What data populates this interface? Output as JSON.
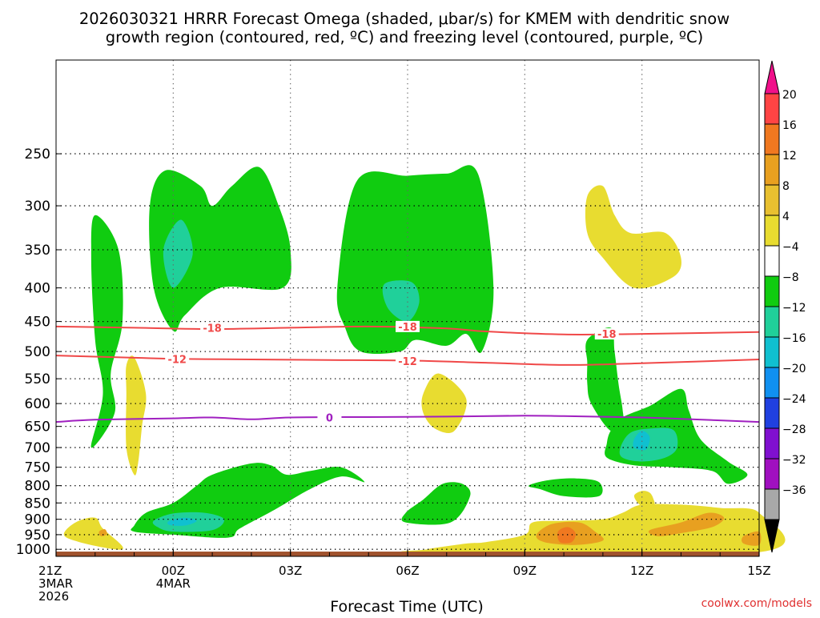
{
  "chart_data": {
    "type": "contour",
    "title_line1": "2026030321 HRRR Forecast Omega (shaded, μbar/s) for KMEM with dendritic snow",
    "title_line2": "growth region (contoured, red, ºC) and freezing level (contoured, purple, ºC)",
    "xlabel": "Forecast Time (UTC)",
    "credit": "coolwx.com/models",
    "xlim": [
      -3,
      15
    ],
    "y_axis_log_pressure_range": [
      1025,
      180
    ],
    "x_ticks": [
      {
        "x": -3,
        "lines": [
          "21Z",
          "3MAR",
          "2026"
        ]
      },
      {
        "x": 0,
        "lines": [
          "00Z",
          "4MAR"
        ]
      },
      {
        "x": 3,
        "lines": [
          "03Z"
        ]
      },
      {
        "x": 6,
        "lines": [
          "06Z"
        ]
      },
      {
        "x": 9,
        "lines": [
          "09Z"
        ]
      },
      {
        "x": 12,
        "lines": [
          "12Z"
        ]
      },
      {
        "x": 15,
        "lines": [
          "15Z"
        ]
      }
    ],
    "y_ticks": [
      250,
      300,
      350,
      400,
      450,
      500,
      550,
      600,
      650,
      700,
      750,
      800,
      850,
      900,
      950,
      1000
    ],
    "colorbar": {
      "labels": [
        "20",
        "16",
        "12",
        "8",
        "4",
        "−4",
        "−8",
        "−12",
        "−16",
        "−20",
        "−24",
        "−28",
        "−32",
        "−36"
      ],
      "colors": [
        "#ff4444",
        "#f07820",
        "#e8a020",
        "#e8c030",
        "#e8dc30",
        "#ffffff",
        "#10cc10",
        "#20d09a",
        "#10c0d0",
        "#1090f0",
        "#2040e0",
        "#8010d0",
        "#a010c0",
        "#a8a8a8"
      ],
      "top_color": "#f0108a",
      "bottom_color": "#000000"
    },
    "contours": [
      {
        "label": "-18",
        "color": "#f04848",
        "points": [
          [
            -3,
            458
          ],
          [
            -1,
            460
          ],
          [
            1,
            462
          ],
          [
            3,
            460
          ],
          [
            5,
            458
          ],
          [
            7,
            461
          ],
          [
            8,
            466
          ],
          [
            10,
            471
          ],
          [
            12,
            470
          ],
          [
            15,
            467
          ]
        ],
        "labels_at": [
          [
            1,
            460
          ],
          [
            6,
            458
          ],
          [
            11.1,
            470
          ]
        ]
      },
      {
        "label": "-12",
        "color": "#f04848",
        "points": [
          [
            -3,
            507
          ],
          [
            -1,
            511
          ],
          [
            0,
            513
          ],
          [
            2,
            514
          ],
          [
            4,
            515
          ],
          [
            6,
            516
          ],
          [
            8,
            520
          ],
          [
            10,
            524
          ],
          [
            12,
            521
          ],
          [
            15,
            514
          ]
        ],
        "labels_at": [
          [
            0.1,
            513
          ],
          [
            6,
            517
          ]
        ]
      },
      {
        "label": "0",
        "color": "#a020c0",
        "points": [
          [
            -3,
            640
          ],
          [
            -2,
            635
          ],
          [
            0,
            632
          ],
          [
            1,
            630
          ],
          [
            2,
            634
          ],
          [
            3,
            630
          ],
          [
            5,
            629
          ],
          [
            7,
            628
          ],
          [
            9,
            626
          ],
          [
            10,
            627
          ],
          [
            12,
            630
          ],
          [
            13,
            633
          ],
          [
            15,
            640
          ]
        ],
        "labels_at": [
          [
            4,
            630
          ]
        ]
      }
    ],
    "omega_regions": [
      {
        "level": -6,
        "color": "#10cc10",
        "points": [
          [
            -2.1,
            700
          ],
          [
            -1.8,
            580
          ],
          [
            -2.0,
            480
          ],
          [
            -2.1,
            360
          ],
          [
            -2,
            310
          ],
          [
            -1.4,
            350
          ],
          [
            -1.3,
            450
          ],
          [
            -1.6,
            540
          ],
          [
            -1.5,
            620
          ]
        ]
      },
      {
        "level": -6,
        "color": "#10cc10",
        "points": [
          [
            0,
            465
          ],
          [
            -0.5,
            400
          ],
          [
            -0.6,
            300
          ],
          [
            -0.2,
            265
          ],
          [
            0.7,
            280
          ],
          [
            1,
            300
          ],
          [
            1.5,
            280
          ],
          [
            2.2,
            262
          ],
          [
            2.7,
            300
          ],
          [
            3,
            350
          ],
          [
            2.8,
            400
          ],
          [
            1.2,
            400
          ],
          [
            0.3,
            440
          ]
        ]
      },
      {
        "level": -6,
        "color": "#10cc10",
        "points": [
          [
            4.2,
            400
          ],
          [
            4.7,
            275
          ],
          [
            6,
            270
          ],
          [
            7,
            268
          ],
          [
            7.8,
            268
          ],
          [
            8.2,
            400
          ],
          [
            7.9,
            500
          ],
          [
            7.5,
            470
          ],
          [
            7,
            490
          ],
          [
            6.2,
            480
          ],
          [
            5.8,
            500
          ],
          [
            4.8,
            500
          ],
          [
            4.4,
            460
          ]
        ]
      },
      {
        "level": -6,
        "color": "#10cc10",
        "points": [
          [
            -1,
            920
          ],
          [
            -0.7,
            880
          ],
          [
            0,
            850
          ],
          [
            0.6,
            800
          ],
          [
            1,
            770
          ],
          [
            2,
            740
          ],
          [
            2.5,
            745
          ],
          [
            2.9,
            770
          ],
          [
            3.5,
            760
          ],
          [
            4.3,
            750
          ],
          [
            4.9,
            790
          ],
          [
            4.3,
            775
          ],
          [
            3.5,
            810
          ],
          [
            2.6,
            870
          ],
          [
            1.7,
            930
          ],
          [
            1.4,
            960
          ],
          [
            0,
            950
          ],
          [
            -1,
            940
          ]
        ]
      },
      {
        "level": -6,
        "color": "#10cc10",
        "points": [
          [
            5.95,
            910
          ],
          [
            5.95,
            880
          ],
          [
            6.4,
            840
          ],
          [
            6.9,
            795
          ],
          [
            7.4,
            795
          ],
          [
            7.6,
            830
          ],
          [
            7.1,
            910
          ]
        ]
      },
      {
        "level": -6,
        "color": "#10cc10",
        "points": [
          [
            9.1,
            800
          ],
          [
            9.6,
            785
          ],
          [
            10.3,
            780
          ],
          [
            10.9,
            790
          ],
          [
            10.9,
            830
          ],
          [
            10,
            830
          ],
          [
            9.4,
            810
          ]
        ]
      },
      {
        "level": -6,
        "color": "#10cc10",
        "points": [
          [
            10.6,
            520
          ],
          [
            10.6,
            480
          ],
          [
            11.2,
            460
          ],
          [
            11.3,
            500
          ],
          [
            11.4,
            560
          ],
          [
            11.5,
            610
          ],
          [
            11.5,
            640
          ],
          [
            11.2,
            660
          ],
          [
            10.7,
            600
          ],
          [
            10.6,
            560
          ]
        ]
      },
      {
        "level": -6,
        "color": "#10cc10",
        "points": [
          [
            11.2,
            660
          ],
          [
            11.5,
            630
          ],
          [
            12.2,
            605
          ],
          [
            13,
            570
          ],
          [
            13.2,
            615
          ],
          [
            13.5,
            680
          ],
          [
            14.2,
            735
          ],
          [
            14.7,
            770
          ],
          [
            14.2,
            795
          ],
          [
            13.8,
            760
          ],
          [
            12.8,
            750
          ],
          [
            11.8,
            745
          ],
          [
            11.1,
            725
          ],
          [
            11.1,
            690
          ]
        ]
      },
      {
        "level": -10,
        "color": "#20d09a",
        "points": [
          [
            -0.25,
            350
          ],
          [
            0.2,
            315
          ],
          [
            0.5,
            355
          ],
          [
            0,
            400
          ]
        ]
      },
      {
        "level": -10,
        "color": "#20d09a",
        "points": [
          [
            5.4,
            395
          ],
          [
            6.1,
            392
          ],
          [
            6.3,
            420
          ],
          [
            6,
            450
          ],
          [
            5.5,
            430
          ]
        ]
      },
      {
        "level": -10,
        "color": "#20d09a",
        "points": [
          [
            -0.5,
            905
          ],
          [
            0,
            882
          ],
          [
            0.8,
            880
          ],
          [
            1.3,
            900
          ],
          [
            1,
            935
          ],
          [
            0,
            940
          ],
          [
            -0.4,
            925
          ]
        ]
      },
      {
        "level": -10,
        "color": "#20d09a",
        "points": [
          [
            11.45,
            700
          ],
          [
            11.7,
            665
          ],
          [
            12.2,
            655
          ],
          [
            12.8,
            658
          ],
          [
            12.9,
            700
          ],
          [
            12.6,
            725
          ],
          [
            12,
            735
          ],
          [
            11.5,
            725
          ]
        ]
      },
      {
        "level": -14,
        "color": "#10c0d0",
        "points": [
          [
            -0.1,
            905
          ],
          [
            0.3,
            895
          ],
          [
            0.6,
            905
          ],
          [
            0.3,
            920
          ],
          [
            -0.1,
            918
          ]
        ]
      },
      {
        "level": -14,
        "color": "#10c0d0",
        "points": [
          [
            11.8,
            680
          ],
          [
            12,
            660
          ],
          [
            12.2,
            675
          ],
          [
            12.1,
            705
          ],
          [
            11.8,
            700
          ]
        ]
      },
      {
        "level": 6,
        "color": "#e8dc30",
        "points": [
          [
            10.6,
            330
          ],
          [
            10.6,
            290
          ],
          [
            11,
            280
          ],
          [
            11.3,
            310
          ],
          [
            11.7,
            330
          ],
          [
            12.6,
            330
          ],
          [
            13,
            360
          ],
          [
            12.8,
            385
          ],
          [
            11.8,
            400
          ],
          [
            11,
            360
          ]
        ]
      },
      {
        "level": 6,
        "color": "#e8dc30",
        "points": [
          [
            -1.2,
            580
          ],
          [
            -1.2,
            525
          ],
          [
            -1,
            510
          ],
          [
            -0.7,
            580
          ],
          [
            -0.8,
            650
          ],
          [
            -0.9,
            740
          ],
          [
            -1,
            770
          ],
          [
            -1.2,
            700
          ]
        ]
      },
      {
        "level": 6,
        "color": "#e8dc30",
        "points": [
          [
            6.4,
            580
          ],
          [
            6.8,
            540
          ],
          [
            7.5,
            590
          ],
          [
            7.2,
            660
          ],
          [
            6.7,
            655
          ],
          [
            6.4,
            620
          ]
        ]
      },
      {
        "level": 6,
        "color": "#e8dc30",
        "points": [
          [
            -2.8,
            950
          ],
          [
            -2.5,
            910
          ],
          [
            -2,
            895
          ],
          [
            -1.8,
            930
          ],
          [
            -1.3,
            990
          ],
          [
            -1.5,
            1000
          ],
          [
            -2.4,
            975
          ]
        ]
      },
      {
        "level": 6,
        "color": "#e8dc30",
        "points": [
          [
            6.5,
            1000
          ],
          [
            7.5,
            980
          ],
          [
            8,
            975
          ],
          [
            9,
            950
          ],
          [
            9.2,
            910
          ],
          [
            10,
            905
          ],
          [
            11,
            900
          ],
          [
            11.5,
            880
          ],
          [
            12,
            855
          ],
          [
            13,
            855
          ],
          [
            14,
            865
          ],
          [
            15,
            880
          ],
          [
            15,
            1010
          ],
          [
            6.5,
            1010
          ]
        ]
      },
      {
        "level": 6,
        "color": "#e8dc30",
        "points": [
          [
            11.8,
            830
          ],
          [
            12,
            815
          ],
          [
            12.2,
            820
          ],
          [
            12.3,
            840
          ],
          [
            12.3,
            855
          ],
          [
            12,
            860
          ]
        ]
      },
      {
        "level": 10,
        "color": "#e8a020",
        "points": [
          [
            9.3,
            950
          ],
          [
            9.7,
            915
          ],
          [
            10.4,
            910
          ],
          [
            10.8,
            940
          ],
          [
            11,
            970
          ],
          [
            10.3,
            985
          ],
          [
            9.5,
            975
          ]
        ]
      },
      {
        "level": 10,
        "color": "#e8a020",
        "points": [
          [
            12.2,
            935
          ],
          [
            13,
            910
          ],
          [
            13.7,
            880
          ],
          [
            14.1,
            895
          ],
          [
            13.8,
            925
          ],
          [
            13,
            945
          ],
          [
            12.4,
            955
          ]
        ]
      },
      {
        "level": 10,
        "color": "#e8a020",
        "points": [
          [
            14.6,
            955
          ],
          [
            15,
            940
          ],
          [
            15,
            985
          ],
          [
            14.6,
            980
          ]
        ]
      },
      {
        "level": 10,
        "color": "#e8a020",
        "points": [
          [
            -1.9,
            940
          ],
          [
            -1.75,
            932
          ],
          [
            -1.7,
            948
          ],
          [
            -1.85,
            955
          ]
        ]
      },
      {
        "level": 14,
        "color": "#f07820",
        "points": [
          [
            9.85,
            940
          ],
          [
            10.1,
            925
          ],
          [
            10.3,
            945
          ],
          [
            10.2,
            975
          ],
          [
            9.9,
            975
          ]
        ]
      }
    ],
    "terrain": {
      "color": "#a0522d",
      "top_pressure": 1008
    }
  }
}
